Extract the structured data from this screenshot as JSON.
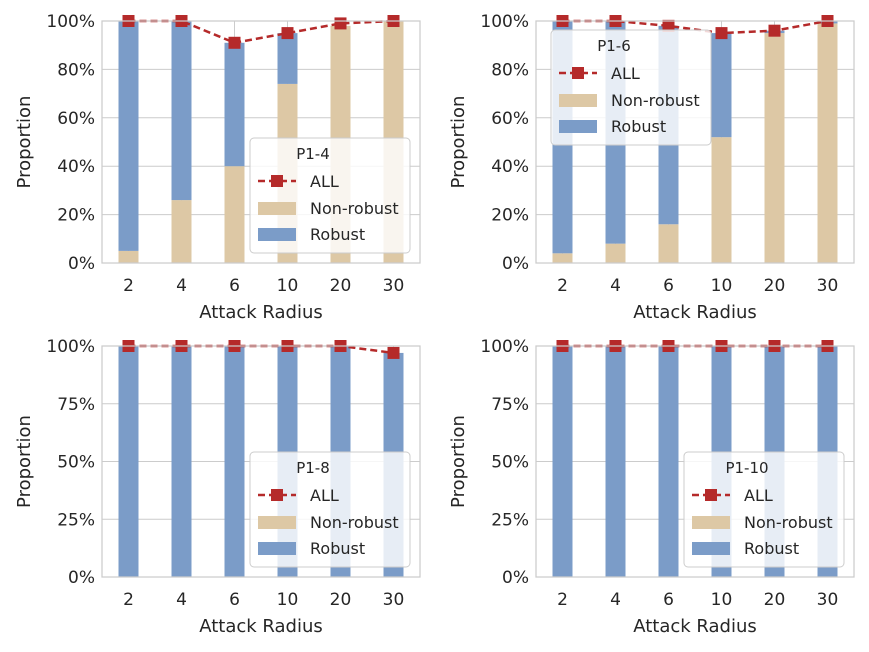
{
  "chart_data": [
    {
      "type": "bar",
      "legend_title": "P1-4",
      "categories": [
        "2",
        "4",
        "6",
        "10",
        "20",
        "30"
      ],
      "xlabel": "Attack Radius",
      "ylabel": "Proportion",
      "ylim": [
        0,
        100
      ],
      "yticks": [
        "0%",
        "20%",
        "40%",
        "60%",
        "80%",
        "100%"
      ],
      "ytick_values": [
        0,
        20,
        40,
        60,
        80,
        100
      ],
      "stacked": true,
      "series": [
        {
          "name": "Non-robust",
          "kind": "bar",
          "color": "#ddc8a5",
          "values": [
            5,
            26,
            40,
            74,
            98,
            100
          ]
        },
        {
          "name": "Robust",
          "kind": "bar",
          "color": "#7b9cc8",
          "values": [
            95,
            74,
            51,
            21,
            0,
            0
          ]
        },
        {
          "name": "ALL",
          "kind": "line",
          "color": "#b52a2a",
          "values": [
            100,
            100,
            91,
            95,
            99,
            100
          ]
        }
      ],
      "legend": [
        "ALL",
        "Non-robust",
        "Robust"
      ],
      "legend_position": "lower-right",
      "grid": true
    },
    {
      "type": "bar",
      "legend_title": "P1-6",
      "categories": [
        "2",
        "4",
        "6",
        "10",
        "20",
        "30"
      ],
      "xlabel": "Attack Radius",
      "ylabel": "Proportion",
      "ylim": [
        0,
        100
      ],
      "yticks": [
        "0%",
        "20%",
        "40%",
        "60%",
        "80%",
        "100%"
      ],
      "ytick_values": [
        0,
        20,
        40,
        60,
        80,
        100
      ],
      "stacked": true,
      "series": [
        {
          "name": "Non-robust",
          "kind": "bar",
          "color": "#ddc8a5",
          "values": [
            4,
            8,
            16,
            52,
            95,
            99
          ]
        },
        {
          "name": "Robust",
          "kind": "bar",
          "color": "#7b9cc8",
          "values": [
            96,
            92,
            82,
            43,
            1,
            1
          ]
        },
        {
          "name": "ALL",
          "kind": "line",
          "color": "#b52a2a",
          "values": [
            100,
            100,
            98,
            95,
            96,
            100
          ]
        }
      ],
      "legend": [
        "ALL",
        "Non-robust",
        "Robust"
      ],
      "legend_position": "upper-left",
      "grid": true
    },
    {
      "type": "bar",
      "legend_title": "P1-8",
      "categories": [
        "2",
        "4",
        "6",
        "10",
        "20",
        "30"
      ],
      "xlabel": "Attack Radius",
      "ylabel": "Proportion",
      "ylim": [
        0,
        100
      ],
      "yticks": [
        "0%",
        "25%",
        "50%",
        "75%",
        "100%"
      ],
      "ytick_values": [
        0,
        25,
        50,
        75,
        100
      ],
      "stacked": true,
      "series": [
        {
          "name": "Non-robust",
          "kind": "bar",
          "color": "#ddc8a5",
          "values": [
            0,
            0,
            0,
            0,
            0,
            0
          ]
        },
        {
          "name": "Robust",
          "kind": "bar",
          "color": "#7b9cc8",
          "values": [
            100,
            100,
            100,
            100,
            100,
            97
          ]
        },
        {
          "name": "ALL",
          "kind": "line",
          "color": "#b52a2a",
          "values": [
            100,
            100,
            100,
            100,
            100,
            97
          ]
        }
      ],
      "legend": [
        "ALL",
        "Non-robust",
        "Robust"
      ],
      "legend_position": "lower-right",
      "grid": true
    },
    {
      "type": "bar",
      "legend_title": "P1-10",
      "categories": [
        "2",
        "4",
        "6",
        "10",
        "20",
        "30"
      ],
      "xlabel": "Attack Radius",
      "ylabel": "Proportion",
      "ylim": [
        0,
        100
      ],
      "yticks": [
        "0%",
        "25%",
        "50%",
        "75%",
        "100%"
      ],
      "ytick_values": [
        0,
        25,
        50,
        75,
        100
      ],
      "stacked": true,
      "series": [
        {
          "name": "Non-robust",
          "kind": "bar",
          "color": "#ddc8a5",
          "values": [
            0,
            0,
            0,
            0,
            0,
            0
          ]
        },
        {
          "name": "Robust",
          "kind": "bar",
          "color": "#7b9cc8",
          "values": [
            100,
            100,
            100,
            100,
            100,
            100
          ]
        },
        {
          "name": "ALL",
          "kind": "line",
          "color": "#b52a2a",
          "values": [
            100,
            100,
            100,
            100,
            100,
            100
          ]
        }
      ],
      "legend": [
        "ALL",
        "Non-robust",
        "Robust"
      ],
      "legend_position": "lower-right",
      "grid": true
    }
  ]
}
